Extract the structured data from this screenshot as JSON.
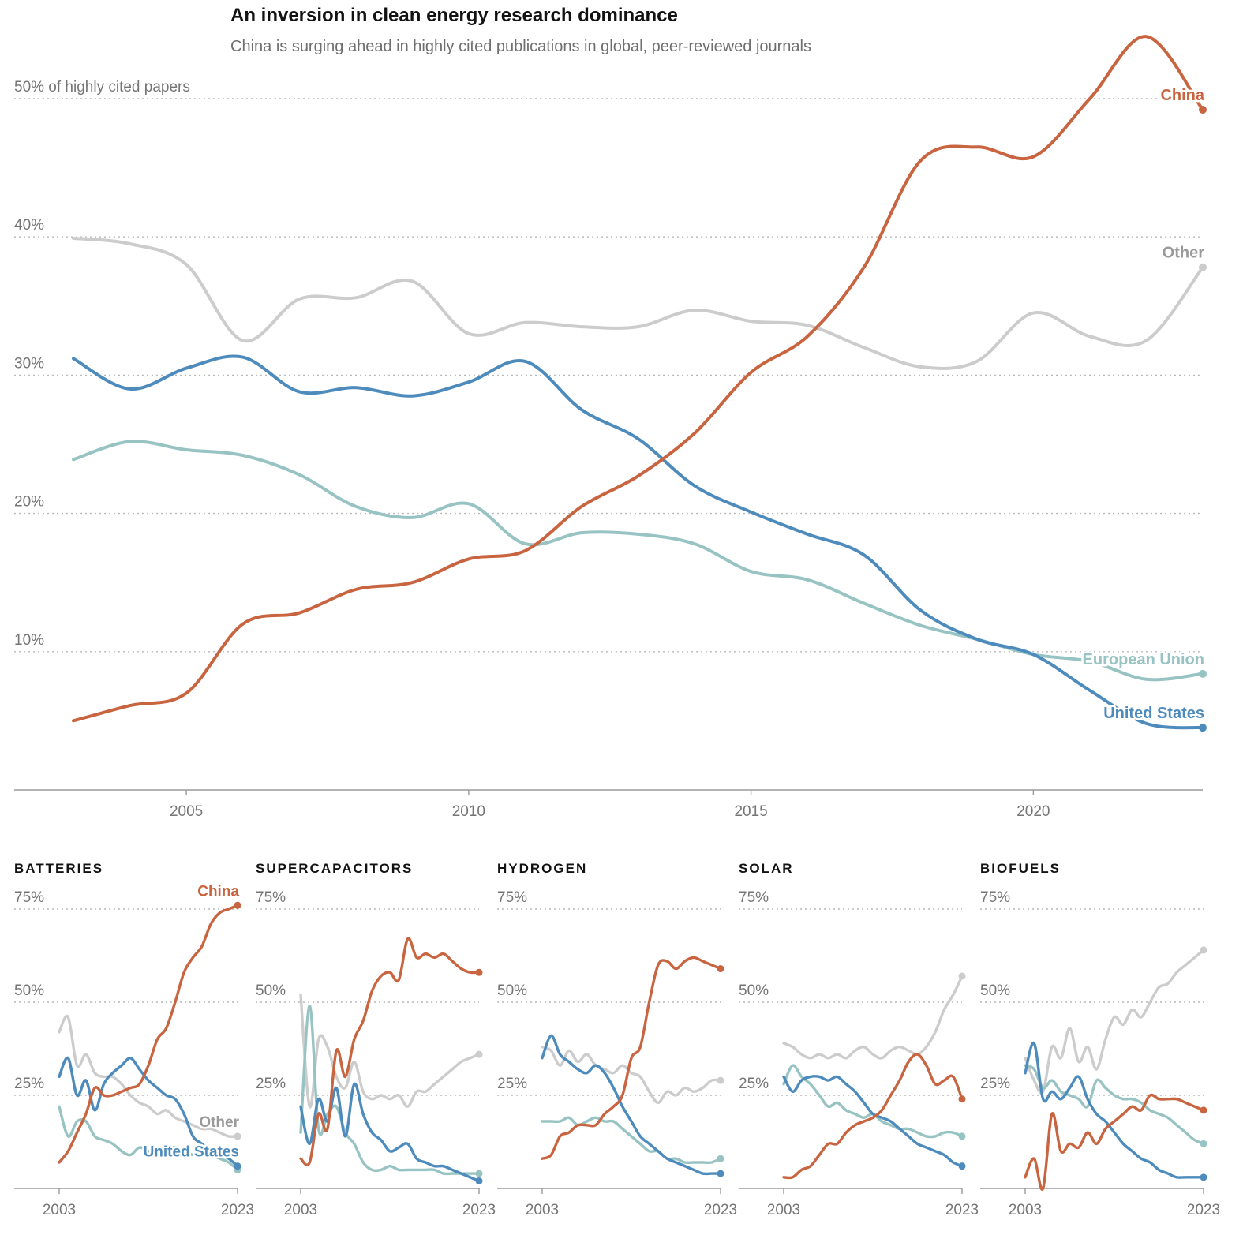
{
  "colors": {
    "China": "#c8643f",
    "Other": "#cccccc",
    "United States": "#4d8bbd",
    "European Union": "#98c3c3"
  },
  "label_colors": {
    "China": "#c8643f",
    "Other": "#9a9a9a",
    "United States": "#4d8bbd",
    "European Union": "#98c3c3"
  },
  "chart_data": [
    {
      "type": "line",
      "title": "An inversion in clean energy research dominance",
      "subtitle": "China is surging ahead in highly cited publications in global, peer-reviewed journals",
      "x": [
        2003,
        2004,
        2005,
        2006,
        2007,
        2008,
        2009,
        2010,
        2011,
        2012,
        2013,
        2014,
        2015,
        2016,
        2017,
        2018,
        2019,
        2020,
        2021,
        2022,
        2023
      ],
      "xticks": [
        2005,
        2010,
        2015,
        2020
      ],
      "ylim": [
        0,
        50
      ],
      "yticks": [
        10,
        20,
        30,
        40,
        50
      ],
      "ytick_labels": [
        "10%",
        "20%",
        "30%",
        "40%",
        "50% of highly cited papers"
      ],
      "grid": true,
      "series": [
        {
          "name": "Other",
          "values": [
            39.9,
            39.5,
            38.0,
            32.5,
            35.5,
            35.6,
            36.8,
            33.0,
            33.8,
            33.5,
            33.5,
            34.7,
            33.9,
            33.6,
            32.0,
            30.6,
            31.0,
            34.5,
            32.8,
            32.5,
            37.8
          ]
        },
        {
          "name": "United States",
          "values": [
            31.2,
            29.0,
            30.5,
            31.3,
            28.8,
            29.1,
            28.5,
            29.5,
            31.0,
            27.5,
            25.4,
            22.0,
            20.1,
            18.5,
            17.0,
            13.0,
            10.9,
            9.8,
            7.2,
            4.8,
            4.5
          ]
        },
        {
          "name": "European Union",
          "values": [
            23.9,
            25.2,
            24.6,
            24.2,
            22.8,
            20.5,
            19.7,
            20.7,
            17.8,
            18.6,
            18.5,
            17.8,
            15.8,
            15.2,
            13.5,
            11.9,
            10.9,
            9.8,
            9.3,
            8.0,
            8.4
          ]
        },
        {
          "name": "China",
          "values": [
            5.0,
            6.1,
            7.0,
            12.0,
            12.8,
            14.5,
            15.0,
            16.7,
            17.3,
            20.5,
            22.7,
            25.8,
            30.2,
            32.8,
            37.8,
            45.5,
            46.5,
            45.8,
            50.0,
            54.5,
            49.2
          ]
        }
      ],
      "series_labels": {
        "China": "China",
        "Other": "Other",
        "European Union": "European Union",
        "United States": "United States"
      }
    },
    {
      "type": "line",
      "title": "BATTERIES",
      "x": [
        2003,
        2004,
        2005,
        2006,
        2007,
        2008,
        2009,
        2010,
        2011,
        2012,
        2013,
        2014,
        2015,
        2016,
        2017,
        2018,
        2019,
        2020,
        2021,
        2022,
        2023
      ],
      "xticks": [
        2003,
        2023
      ],
      "ylim": [
        0,
        75
      ],
      "yticks": [
        25,
        50,
        75
      ],
      "ytick_labels": [
        "25%",
        "50%",
        "75%"
      ],
      "series": [
        {
          "name": "Other",
          "values": [
            42,
            46,
            33,
            36,
            31,
            30,
            30,
            28,
            25,
            23,
            22,
            20,
            21,
            19,
            18,
            17,
            16,
            16,
            15,
            14,
            14
          ]
        },
        {
          "name": "United States",
          "values": [
            30,
            35,
            25,
            29,
            21,
            28,
            31,
            33,
            35,
            32,
            29,
            27,
            25,
            24,
            20,
            14,
            12,
            10,
            9,
            8,
            6
          ]
        },
        {
          "name": "European Union",
          "values": [
            22,
            14,
            18,
            18,
            14,
            13,
            12,
            10,
            9,
            11,
            10,
            10,
            11,
            11,
            10,
            9,
            9,
            9,
            8,
            7,
            5
          ]
        },
        {
          "name": "China",
          "values": [
            7,
            10,
            15,
            20,
            27,
            25,
            25,
            26,
            27,
            28,
            33,
            40,
            43,
            50,
            58,
            62,
            65,
            71,
            74,
            75,
            76
          ]
        }
      ],
      "series_labels": {
        "China": "China",
        "Other": "Other",
        "United States": "United States"
      }
    },
    {
      "type": "line",
      "title": "SUPERCAPACITORS",
      "x": [
        2003,
        2004,
        2005,
        2006,
        2007,
        2008,
        2009,
        2010,
        2011,
        2012,
        2013,
        2014,
        2015,
        2016,
        2017,
        2018,
        2019,
        2020,
        2021,
        2022,
        2023
      ],
      "xticks": [
        2003,
        2023
      ],
      "ylim": [
        0,
        75
      ],
      "yticks": [
        25,
        50,
        75
      ],
      "ytick_labels": [
        "25%",
        "50%",
        "75%"
      ],
      "series": [
        {
          "name": "Other",
          "values": [
            52,
            22,
            40,
            38,
            30,
            27,
            34,
            26,
            24,
            25,
            24,
            25,
            22,
            26,
            26,
            28,
            30,
            32,
            34,
            35,
            36
          ]
        },
        {
          "name": "United States",
          "values": [
            22,
            12,
            24,
            18,
            27,
            14,
            28,
            20,
            15,
            13,
            10,
            11,
            12,
            8,
            7,
            6,
            6,
            5,
            4,
            3,
            2
          ]
        },
        {
          "name": "European Union",
          "values": [
            15,
            49,
            16,
            20,
            22,
            15,
            12,
            7,
            5,
            5,
            6,
            5,
            5,
            5,
            5,
            5,
            4,
            4,
            4,
            4,
            4
          ]
        },
        {
          "name": "China",
          "values": [
            8,
            7,
            20,
            16,
            37,
            30,
            40,
            45,
            53,
            57,
            58,
            56,
            67,
            62,
            63,
            62,
            63,
            61,
            59,
            58,
            58
          ]
        }
      ]
    },
    {
      "type": "line",
      "title": "HYDROGEN",
      "x": [
        2003,
        2004,
        2005,
        2006,
        2007,
        2008,
        2009,
        2010,
        2011,
        2012,
        2013,
        2014,
        2015,
        2016,
        2017,
        2018,
        2019,
        2020,
        2021,
        2022,
        2023
      ],
      "xticks": [
        2003,
        2023
      ],
      "ylim": [
        0,
        75
      ],
      "yticks": [
        25,
        50,
        75
      ],
      "ytick_labels": [
        "25%",
        "50%",
        "75%"
      ],
      "series": [
        {
          "name": "Other",
          "values": [
            38,
            37,
            33,
            37,
            34,
            36,
            33,
            32,
            31,
            33,
            31,
            30,
            26,
            23,
            26,
            25,
            27,
            26,
            27,
            29,
            29
          ]
        },
        {
          "name": "United States",
          "values": [
            35,
            41,
            36,
            34,
            32,
            31,
            33,
            31,
            27,
            22,
            18,
            14,
            12,
            10,
            8,
            7,
            6,
            5,
            4,
            4,
            4
          ]
        },
        {
          "name": "European Union",
          "values": [
            18,
            18,
            18,
            19,
            17,
            18,
            19,
            18,
            18,
            16,
            14,
            12,
            10,
            10,
            8,
            8,
            7,
            7,
            7,
            7,
            8
          ]
        },
        {
          "name": "China",
          "values": [
            8,
            9,
            14,
            15,
            17,
            17,
            17,
            20,
            22,
            25,
            35,
            38,
            50,
            60,
            61,
            59,
            61,
            62,
            61,
            60,
            59
          ]
        }
      ]
    },
    {
      "type": "line",
      "title": "SOLAR",
      "x": [
        2003,
        2004,
        2005,
        2006,
        2007,
        2008,
        2009,
        2010,
        2011,
        2012,
        2013,
        2014,
        2015,
        2016,
        2017,
        2018,
        2019,
        2020,
        2021,
        2022,
        2023
      ],
      "xticks": [
        2003,
        2023
      ],
      "ylim": [
        0,
        75
      ],
      "yticks": [
        25,
        50,
        75
      ],
      "ytick_labels": [
        "25%",
        "50%",
        "75%"
      ],
      "series": [
        {
          "name": "Other",
          "values": [
            39,
            38,
            36,
            35,
            36,
            35,
            36,
            35,
            37,
            38,
            36,
            35,
            37,
            38,
            37,
            36,
            38,
            42,
            48,
            52,
            57
          ]
        },
        {
          "name": "United States",
          "values": [
            30,
            26,
            29,
            30,
            30,
            29,
            30,
            28,
            26,
            23,
            20,
            19,
            18,
            16,
            14,
            12,
            11,
            10,
            9,
            7,
            6
          ]
        },
        {
          "name": "European Union",
          "values": [
            28,
            33,
            30,
            28,
            25,
            22,
            23,
            21,
            20,
            19,
            20,
            18,
            17,
            16,
            16,
            15,
            14,
            14,
            15,
            15,
            14
          ]
        },
        {
          "name": "China",
          "values": [
            3,
            3,
            5,
            6,
            9,
            12,
            12,
            15,
            17,
            18,
            19,
            21,
            25,
            29,
            34,
            36,
            33,
            28,
            29,
            30,
            24
          ]
        }
      ]
    },
    {
      "type": "line",
      "title": "BIOFUELS",
      "x": [
        2003,
        2004,
        2005,
        2006,
        2007,
        2008,
        2009,
        2010,
        2011,
        2012,
        2013,
        2014,
        2015,
        2016,
        2017,
        2018,
        2019,
        2020,
        2021,
        2022,
        2023
      ],
      "xticks": [
        2003,
        2023
      ],
      "ylim": [
        0,
        75
      ],
      "yticks": [
        25,
        50,
        75
      ],
      "ytick_labels": [
        "25%",
        "50%",
        "75%"
      ],
      "series": [
        {
          "name": "Other",
          "values": [
            35,
            29,
            26,
            38,
            35,
            43,
            34,
            38,
            32,
            40,
            46,
            44,
            48,
            46,
            50,
            54,
            55,
            58,
            60,
            62,
            64
          ]
        },
        {
          "name": "United States",
          "values": [
            31,
            39,
            24,
            26,
            24,
            27,
            30,
            24,
            20,
            18,
            15,
            12,
            10,
            8,
            7,
            5,
            4,
            3,
            3,
            3,
            3
          ]
        },
        {
          "name": "European Union",
          "values": [
            33,
            32,
            27,
            29,
            26,
            25,
            24,
            22,
            29,
            27,
            25,
            24,
            24,
            23,
            21,
            20,
            19,
            17,
            15,
            13,
            12
          ]
        },
        {
          "name": "China",
          "values": [
            3,
            8,
            0,
            20,
            10,
            12,
            11,
            15,
            12,
            16,
            18,
            20,
            22,
            21,
            25,
            24,
            24,
            24,
            23,
            22,
            21
          ]
        }
      ]
    }
  ]
}
